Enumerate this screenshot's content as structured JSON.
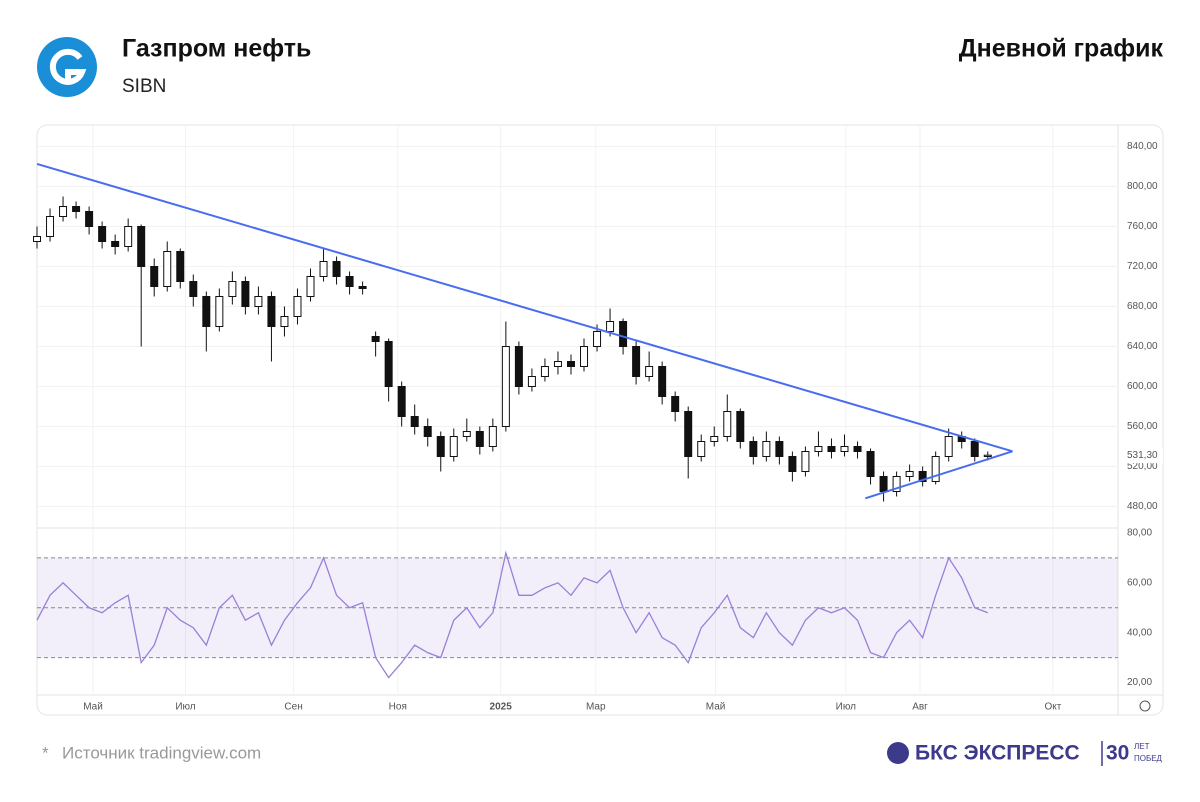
{
  "header": {
    "title": "Газпром нефть",
    "ticker": "SIBN",
    "chart_kind": "Дневной график"
  },
  "footer": {
    "source_mark": "*",
    "source": "Источник tradingview.com",
    "brand": "БКС ЭКСПРЕСС",
    "anniversary": "30",
    "anniversary_top": "ЛЕТ",
    "anniversary_bottom": "ПОБЕД"
  },
  "chart_data": [
    {
      "type": "candlestick",
      "color_up": "#ffffff",
      "color_down": "#111111",
      "x": [
        0,
        1,
        2,
        3,
        4,
        5,
        6,
        7,
        8,
        9,
        10,
        11,
        12,
        13,
        14,
        15,
        16,
        17,
        18,
        19,
        20,
        21,
        22,
        23,
        24,
        25,
        26,
        27,
        28,
        29,
        30,
        31,
        32,
        33,
        34,
        35,
        36,
        37,
        38,
        39,
        40,
        41,
        42,
        43,
        44,
        45,
        46,
        47,
        48,
        49,
        50,
        51,
        52,
        53,
        54,
        55,
        56,
        57,
        58,
        59,
        60,
        61,
        62,
        63,
        64,
        65,
        66,
        67,
        68,
        69,
        70,
        71,
        72,
        73
      ],
      "open": [
        745,
        750,
        770,
        780,
        775,
        760,
        745,
        740,
        760,
        720,
        700,
        735,
        705,
        690,
        660,
        690,
        705,
        680,
        690,
        660,
        670,
        690,
        710,
        725,
        710,
        700,
        650,
        645,
        600,
        570,
        560,
        550,
        530,
        550,
        555,
        540,
        560,
        640,
        600,
        610,
        620,
        625,
        620,
        640,
        655,
        665,
        640,
        610,
        620,
        590,
        575,
        530,
        545,
        550,
        575,
        545,
        530,
        545,
        530,
        515,
        535,
        540,
        535,
        540,
        535,
        510,
        495,
        510,
        515,
        505,
        530,
        550,
        545,
        530
      ],
      "high": [
        760,
        778,
        790,
        785,
        780,
        765,
        752,
        768,
        762,
        728,
        745,
        738,
        712,
        695,
        698,
        715,
        710,
        700,
        695,
        680,
        698,
        718,
        738,
        730,
        715,
        705,
        655,
        648,
        605,
        582,
        568,
        555,
        558,
        568,
        560,
        568,
        665,
        645,
        618,
        628,
        635,
        632,
        648,
        662,
        678,
        668,
        645,
        635,
        625,
        595,
        580,
        552,
        560,
        592,
        578,
        550,
        555,
        550,
        535,
        540,
        555,
        548,
        552,
        545,
        538,
        515,
        515,
        522,
        520,
        535,
        558,
        555,
        548,
        535
      ],
      "low": [
        738,
        745,
        765,
        768,
        752,
        738,
        732,
        735,
        640,
        690,
        695,
        698,
        680,
        635,
        655,
        682,
        672,
        672,
        625,
        650,
        662,
        685,
        705,
        702,
        692,
        692,
        630,
        585,
        560,
        552,
        540,
        515,
        525,
        545,
        532,
        535,
        555,
        592,
        595,
        605,
        612,
        612,
        615,
        635,
        650,
        632,
        602,
        605,
        582,
        565,
        508,
        525,
        540,
        545,
        538,
        522,
        525,
        522,
        505,
        510,
        530,
        528,
        530,
        528,
        502,
        485,
        490,
        505,
        500,
        502,
        525,
        538,
        525,
        526
      ],
      "close": [
        750,
        770,
        780,
        775,
        760,
        745,
        740,
        760,
        720,
        700,
        735,
        705,
        690,
        660,
        690,
        705,
        680,
        690,
        660,
        670,
        690,
        710,
        725,
        710,
        700,
        698,
        645,
        600,
        570,
        560,
        550,
        530,
        550,
        555,
        540,
        560,
        640,
        600,
        610,
        620,
        625,
        620,
        640,
        655,
        665,
        640,
        610,
        620,
        590,
        575,
        530,
        545,
        550,
        575,
        545,
        530,
        545,
        530,
        515,
        535,
        540,
        535,
        540,
        535,
        510,
        495,
        510,
        515,
        505,
        530,
        550,
        545,
        530,
        531.3
      ],
      "last_label": {
        "value": 531.3,
        "label": "531,30"
      },
      "trendlines": [
        {
          "color": "#4a6cf0",
          "x": [
            0,
            74.9
          ],
          "y": [
            822.6,
            535.2
          ]
        },
        {
          "color": "#4a6cf0",
          "x": [
            63.6,
            74.9
          ],
          "y": [
            488.2,
            535.2
          ]
        }
      ],
      "xlim": [
        0,
        83
      ],
      "xticks": [
        {
          "value": 4.3,
          "label": "Май"
        },
        {
          "value": 11.4,
          "label": "Июл"
        },
        {
          "value": 19.7,
          "label": "Сен"
        },
        {
          "value": 27.7,
          "label": "Ноя"
        },
        {
          "value": 35.6,
          "label": "2025"
        },
        {
          "value": 42.9,
          "label": "Мар"
        },
        {
          "value": 52.1,
          "label": "Май"
        },
        {
          "value": 62.1,
          "label": "Июл"
        },
        {
          "value": 67.8,
          "label": "Авг"
        },
        {
          "value": 78,
          "label": "Окт"
        }
      ],
      "ylim": [
        458.5,
        861.5
      ],
      "yticks": [
        {
          "value": 480,
          "label": "480,00"
        },
        {
          "value": 520,
          "label": "520,00"
        },
        {
          "value": 560,
          "label": "560,00"
        },
        {
          "value": 600,
          "label": "600,00"
        },
        {
          "value": 640,
          "label": "640,00"
        },
        {
          "value": 680,
          "label": "680,00"
        },
        {
          "value": 720,
          "label": "720,00"
        },
        {
          "value": 760,
          "label": "760,00"
        },
        {
          "value": 800,
          "label": "800,00"
        },
        {
          "value": 840,
          "label": "840,00"
        }
      ],
      "grid": true
    },
    {
      "type": "line",
      "color": "#9a7fd8",
      "band": [
        30,
        70
      ],
      "levels": [
        70,
        50,
        30
      ],
      "values": [
        45,
        55,
        60,
        55,
        50,
        48,
        52,
        55,
        28,
        35,
        50,
        45,
        42,
        35,
        50,
        55,
        45,
        48,
        35,
        45,
        52,
        58,
        70,
        55,
        50,
        52,
        30,
        22,
        28,
        35,
        32,
        30,
        45,
        50,
        42,
        48,
        72,
        55,
        55,
        58,
        60,
        55,
        62,
        60,
        65,
        50,
        40,
        48,
        38,
        35,
        28,
        42,
        48,
        55,
        42,
        38,
        48,
        40,
        35,
        45,
        50,
        48,
        50,
        45,
        32,
        30,
        40,
        45,
        38,
        55,
        70,
        62,
        50,
        48
      ],
      "ylim": [
        15,
        82
      ],
      "yticks": [
        {
          "value": 20,
          "label": "20,00"
        },
        {
          "value": 40,
          "label": "40,00"
        },
        {
          "value": 60,
          "label": "60,00"
        },
        {
          "value": 80,
          "label": "80,00"
        }
      ]
    }
  ]
}
